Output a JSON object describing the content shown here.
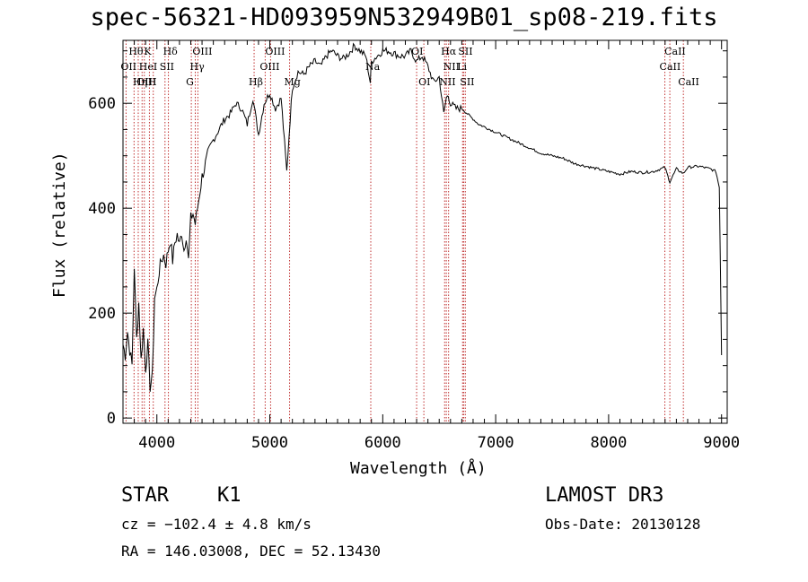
{
  "chart_data": {
    "type": "line",
    "title": "spec-56321-HD093959N532949B01_sp08-219.fits",
    "xlabel": "Wavelength (Å)",
    "ylabel": "Flux (relative)",
    "xlim": [
      3700,
      9050
    ],
    "ylim": [
      -10,
      720
    ],
    "xticks": [
      4000,
      5000,
      6000,
      7000,
      8000,
      9000
    ],
    "yticks": [
      0,
      200,
      400,
      600
    ],
    "series": [
      {
        "name": "flux",
        "x": [
          3700,
          3720,
          3740,
          3760,
          3780,
          3800,
          3820,
          3840,
          3860,
          3880,
          3900,
          3920,
          3940,
          3960,
          3980,
          4000,
          4020,
          4040,
          4060,
          4080,
          4100,
          4120,
          4140,
          4160,
          4180,
          4200,
          4220,
          4240,
          4260,
          4280,
          4300,
          4320,
          4340,
          4360,
          4380,
          4400,
          4450,
          4500,
          4550,
          4600,
          4650,
          4700,
          4750,
          4800,
          4850,
          4900,
          4950,
          5000,
          5050,
          5100,
          5150,
          5180,
          5200,
          5250,
          5300,
          5350,
          5400,
          5450,
          5500,
          5550,
          5600,
          5650,
          5700,
          5750,
          5800,
          5850,
          5890,
          5900,
          5950,
          6000,
          6050,
          6100,
          6150,
          6200,
          6250,
          6300,
          6350,
          6400,
          6450,
          6500,
          6540,
          6563,
          6580,
          6600,
          6650,
          6700,
          6750,
          6800,
          6850,
          6900,
          6950,
          7000,
          7100,
          7200,
          7300,
          7400,
          7500,
          7600,
          7700,
          7800,
          7900,
          8000,
          8100,
          8200,
          8300,
          8400,
          8498,
          8542,
          8600,
          8662,
          8700,
          8800,
          8900,
          8950,
          8980,
          9000
        ],
        "y": [
          140,
          120,
          165,
          130,
          100,
          290,
          150,
          220,
          110,
          170,
          95,
          140,
          60,
          80,
          230,
          245,
          280,
          300,
          310,
          295,
          320,
          340,
          300,
          335,
          350,
          330,
          355,
          320,
          350,
          300,
          380,
          390,
          370,
          400,
          430,
          460,
          500,
          530,
          550,
          570,
          580,
          600,
          590,
          560,
          610,
          540,
          600,
          620,
          590,
          610,
          470,
          570,
          630,
          660,
          655,
          670,
          680,
          670,
          690,
          700,
          690,
          685,
          695,
          710,
          700,
          690,
          640,
          680,
          690,
          700,
          700,
          695,
          690,
          690,
          700,
          680,
          690,
          670,
          640,
          650,
          580,
          610,
          615,
          600,
          590,
          590,
          580,
          570,
          560,
          555,
          550,
          545,
          535,
          525,
          515,
          505,
          500,
          495,
          485,
          480,
          475,
          470,
          465,
          470,
          468,
          470,
          478,
          450,
          475,
          466,
          478,
          480,
          475,
          470,
          440,
          120
        ]
      }
    ],
    "lines": [
      {
        "name": "Hθ",
        "wave": 3798,
        "row": 1
      },
      {
        "name": "OII",
        "wave": 3727,
        "row": 2
      },
      {
        "name": "OIII",
        "wave": 3869,
        "row": 3
      },
      {
        "name": "HeI",
        "wave": 3889,
        "row": 2
      },
      {
        "name": "Hη",
        "wave": 3835,
        "row": 3
      },
      {
        "name": "K",
        "wave": 3934,
        "row": 1
      },
      {
        "name": "H",
        "wave": 3968,
        "row": 3
      },
      {
        "name": "SII",
        "wave": 4072,
        "row": 2
      },
      {
        "name": "Hδ",
        "wave": 4102,
        "row": 1
      },
      {
        "name": "OIII",
        "wave": 4363,
        "row": 1
      },
      {
        "name": "Hγ",
        "wave": 4340,
        "row": 2
      },
      {
        "name": "G",
        "wave": 4305,
        "row": 3
      },
      {
        "name": "Hβ",
        "wave": 4861,
        "row": 3
      },
      {
        "name": "OIII",
        "wave": 5007,
        "row": 1
      },
      {
        "name": "OIII",
        "wave": 4959,
        "row": 2
      },
      {
        "name": "Mg",
        "wave": 5175,
        "row": 3
      },
      {
        "name": "Na",
        "wave": 5894,
        "row": 2
      },
      {
        "name": "OI",
        "wave": 6300,
        "row": 1
      },
      {
        "name": "OI",
        "wave": 6364,
        "row": 3
      },
      {
        "name": "Hα",
        "wave": 6563,
        "row": 1
      },
      {
        "name": "NII",
        "wave": 6548,
        "row": 3
      },
      {
        "name": "NII",
        "wave": 6583,
        "row": 2
      },
      {
        "name": "SII",
        "wave": 6716,
        "row": 1
      },
      {
        "name": "SII",
        "wave": 6731,
        "row": 3
      },
      {
        "name": "Li",
        "wave": 6707,
        "row": 2
      },
      {
        "name": "CaII",
        "wave": 8498,
        "row": 2
      },
      {
        "name": "CaII",
        "wave": 8542,
        "row": 1
      },
      {
        "name": "CaII",
        "wave": 8662,
        "row": 3
      }
    ]
  },
  "info": {
    "class": "STAR",
    "subclass": "K1",
    "survey": "LAMOST DR3",
    "cz": "cz = −102.4 ± 4.8 km/s",
    "obs_date": "Obs-Date: 20130128",
    "coords": "RA = 146.03008, DEC =  52.13430"
  },
  "colors": {
    "spectrum": "#000000",
    "line_marker": "#c03030",
    "axes": "#000000"
  }
}
